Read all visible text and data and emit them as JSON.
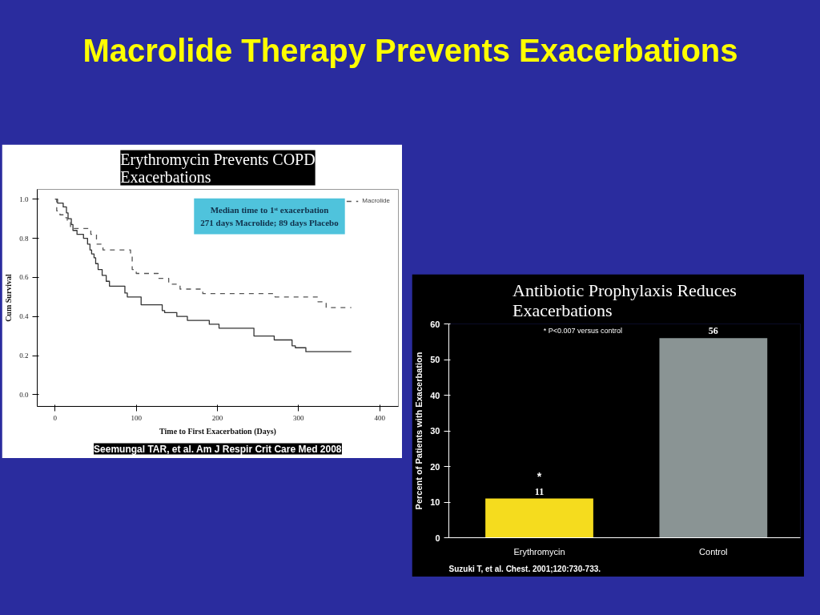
{
  "chart_data": [
    {
      "type": "other",
      "title": "Macrolide Therapy Prevents Exacerbations"
    },
    {
      "type": "step",
      "title": "Erythromycin Prevents COPD Exacerbations",
      "xlabel": "Time to First Exacerbation (Days)",
      "ylabel": "Cum Survival",
      "xlim": [
        -22,
        423
      ],
      "ylim": [
        -0.06,
        1.05
      ],
      "xticks": [
        0,
        100,
        200,
        300,
        400
      ],
      "yticks": [
        {
          "value": 0,
          "label": "0.0"
        },
        {
          "value": 0.2,
          "label": "0.2"
        },
        {
          "value": 0.4,
          "label": "0.4"
        },
        {
          "value": 0.6,
          "label": "0.6"
        },
        {
          "value": 0.8,
          "label": "0.8"
        },
        {
          "value": 1,
          "label": "1.0"
        }
      ],
      "grid": false,
      "legend": "top right",
      "series": [
        {
          "color": "#333333",
          "line_style": "solid",
          "x": [
            0,
            3,
            10,
            14,
            16,
            20,
            22,
            27,
            35,
            40,
            43,
            45,
            48,
            50,
            53,
            58,
            63,
            67,
            86,
            89,
            106,
            132,
            135,
            150,
            163,
            190,
            202,
            245,
            270,
            292,
            296,
            309,
            365
          ],
          "values": [
            1.0,
            0.98,
            0.96,
            0.93,
            0.9,
            0.87,
            0.84,
            0.82,
            0.8,
            0.77,
            0.74,
            0.72,
            0.7,
            0.67,
            0.64,
            0.61,
            0.58,
            0.555,
            0.52,
            0.5,
            0.46,
            0.43,
            0.42,
            0.4,
            0.38,
            0.36,
            0.34,
            0.3,
            0.28,
            0.25,
            0.24,
            0.22,
            0.22
          ]
        },
        {
          "name": "Macrolide",
          "color": "#555555",
          "line_style": "dashed",
          "x": [
            0,
            2,
            6,
            11,
            15,
            19,
            44,
            51,
            59,
            93,
            95,
            100,
            127,
            140,
            154,
            182,
            271,
            324,
            334,
            365
          ],
          "values": [
            1.0,
            0.94,
            0.92,
            0.905,
            0.88,
            0.85,
            0.82,
            0.77,
            0.74,
            0.71,
            0.64,
            0.62,
            0.595,
            0.565,
            0.54,
            0.517,
            0.5,
            0.475,
            0.445,
            0.445
          ]
        }
      ],
      "annotations": [
        "Median time to 1ˢᵗ exacerbation\n271 days Macrolide; 89 days Placebo",
        "Seemungal TAR, et al. Am J Respir Crit Care Med 2008"
      ]
    },
    {
      "type": "bar",
      "title": "Antibiotic Prophylaxis Reduces Exacerbations",
      "ylabel": "Percent of Patients with Exacerbation",
      "categories": [
        "Erythromycin",
        "Control"
      ],
      "values": [
        11,
        56
      ],
      "colors": [
        "#f5dc1e",
        "#8a9494"
      ],
      "ylim": [
        0,
        60
      ],
      "yticks": [
        0,
        10,
        20,
        30,
        40,
        50,
        60
      ],
      "grid": false,
      "data_labels": true,
      "annotations": [
        "* P<0.007 versus control",
        {
          "text": "*",
          "x": "Erythromycin",
          "y": 11
        },
        "Suzuki T, et al. Chest. 2001;120:730-733."
      ]
    }
  ]
}
